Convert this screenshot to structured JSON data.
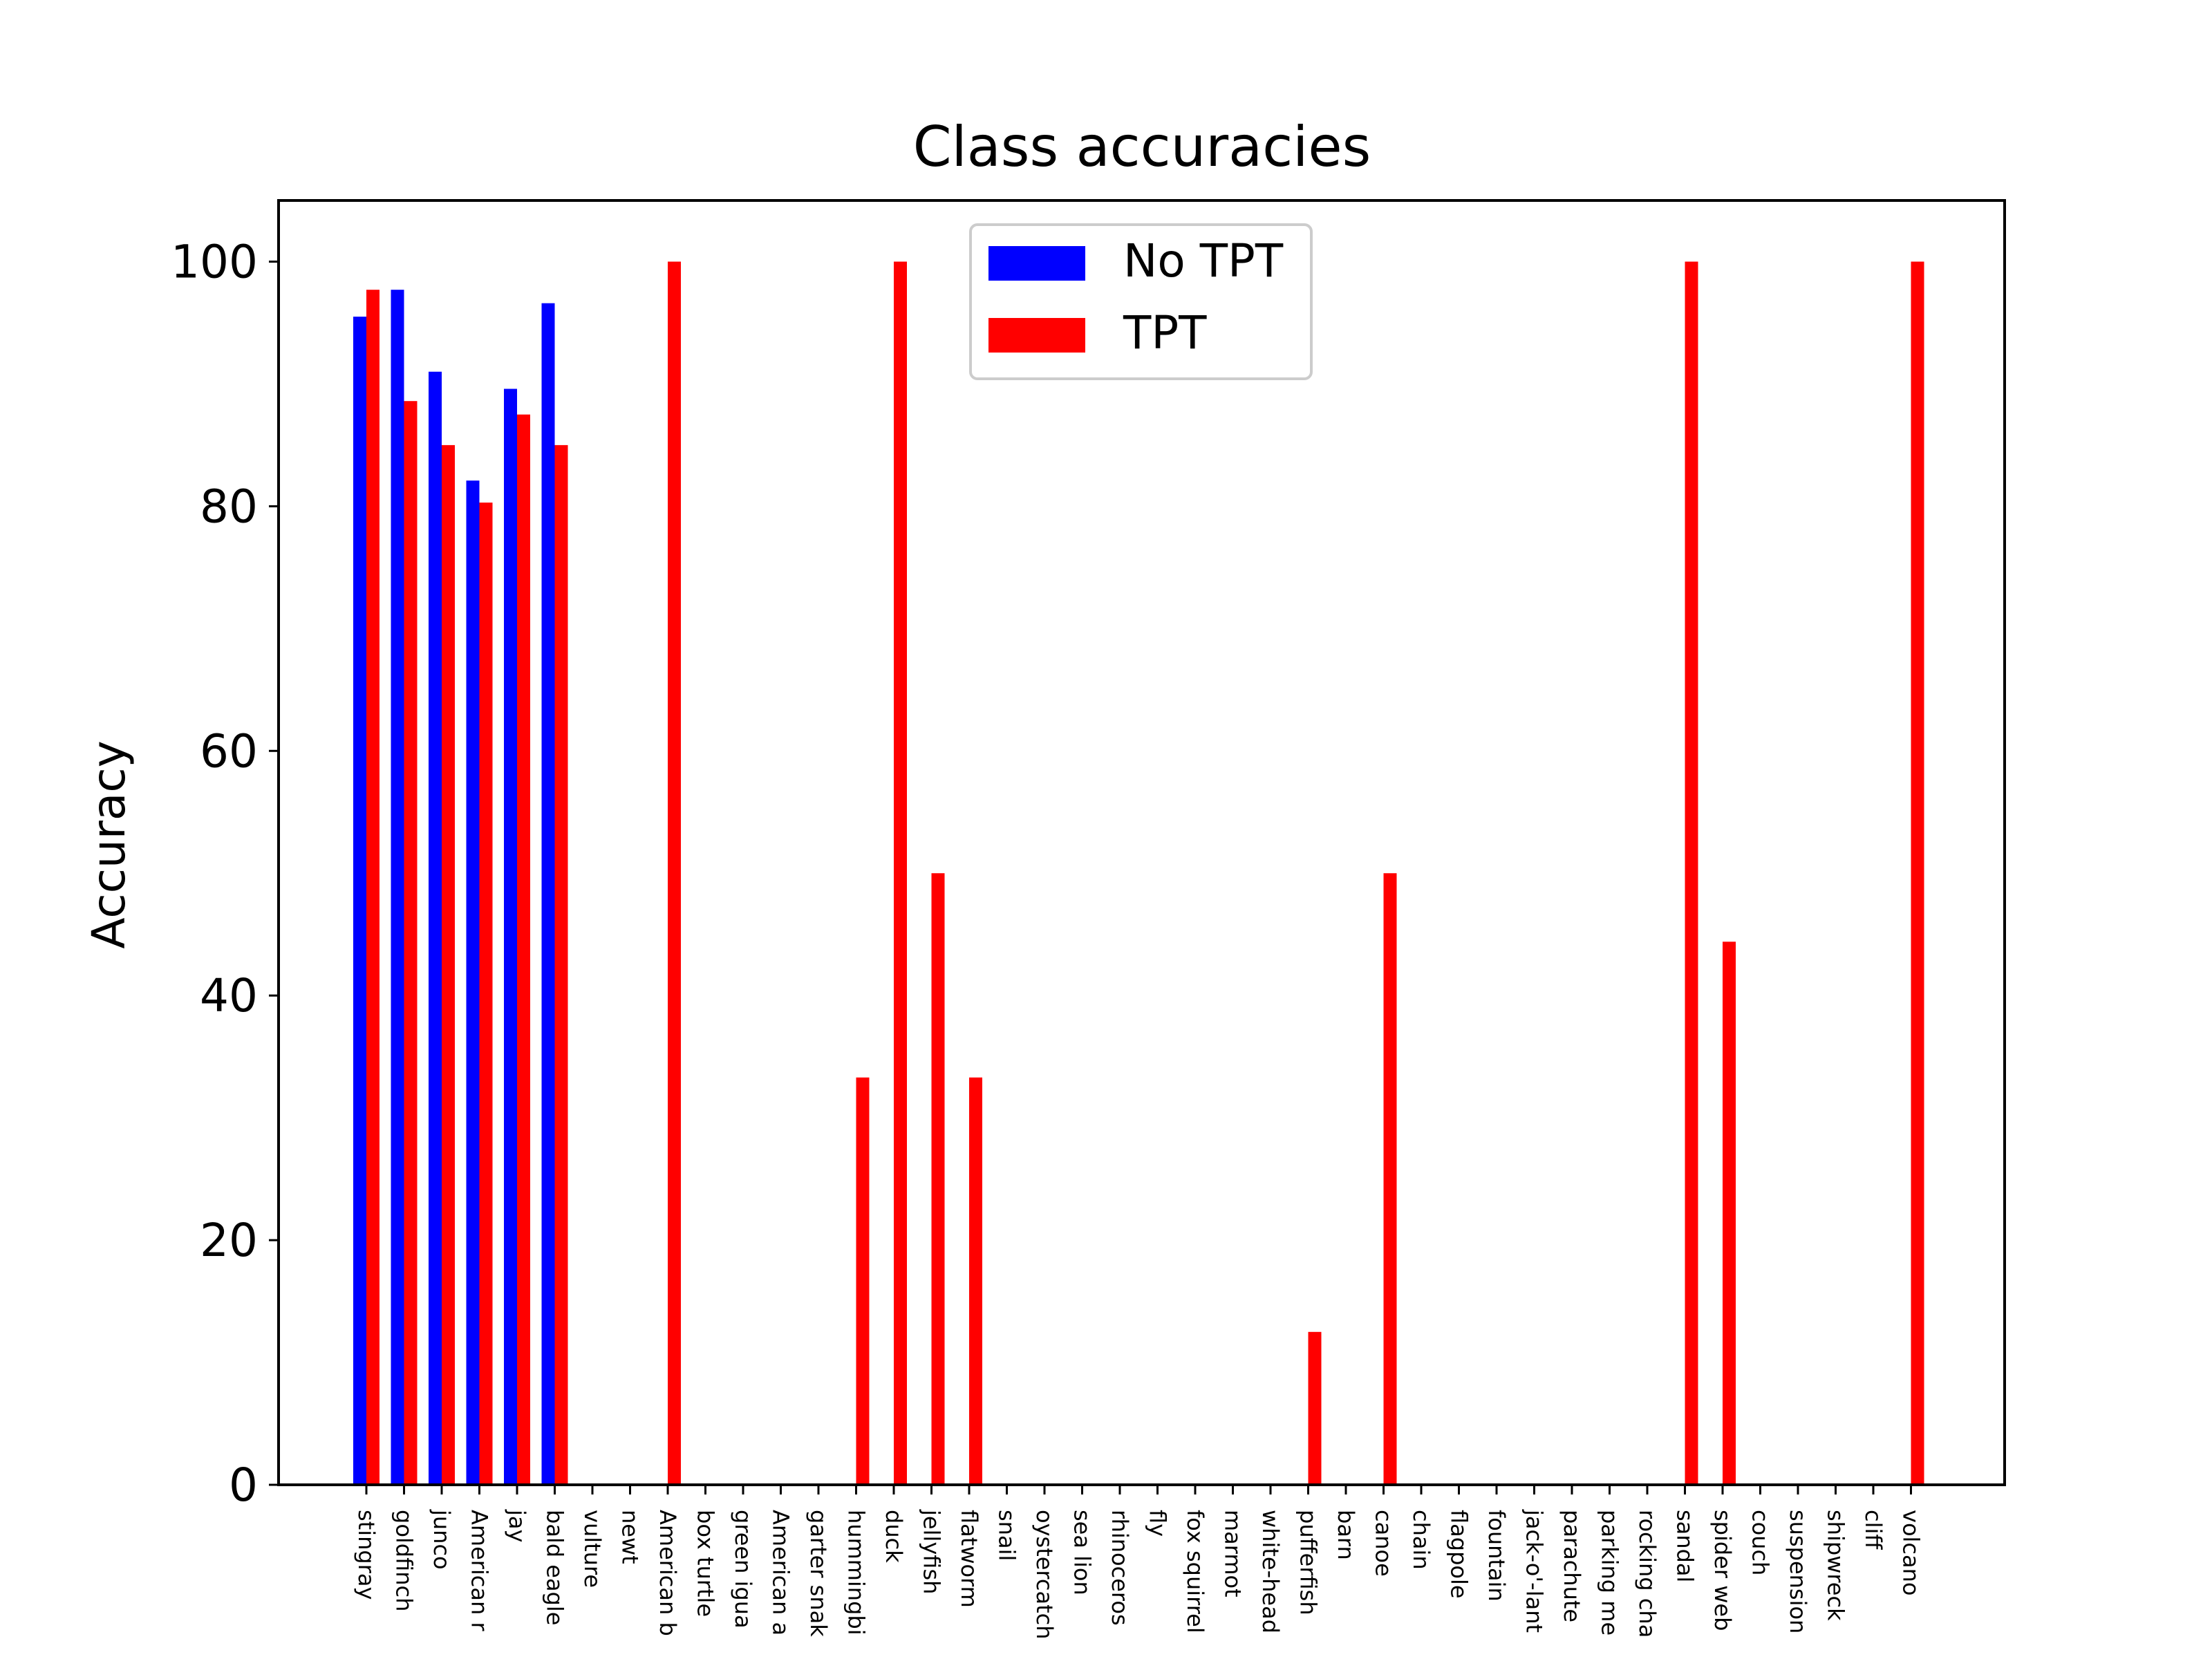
{
  "chart_data": {
    "type": "bar",
    "title": "Class accuracies",
    "xlabel": "",
    "ylabel": "Accuracy",
    "ylim": [
      0,
      105
    ],
    "yticks": [
      0,
      20,
      40,
      60,
      80,
      100
    ],
    "grid": false,
    "legend_position": "top-center",
    "categories": [
      "stingray",
      "goldfinch",
      "junco",
      "American r",
      "jay",
      "bald eagle",
      "vulture",
      "newt",
      "American b",
      "box turtle",
      "green igua",
      "American a",
      "garter snak",
      "hummingbi",
      "duck",
      "jellyfish",
      "flatworm",
      "snail",
      "oystercatch",
      "sea lion",
      "rhinoceros",
      "fly",
      "fox squirrel",
      "marmot",
      "white-head",
      "pufferfish",
      "barn",
      "canoe",
      "chain",
      "flagpole",
      "fountain",
      "jack-o'-lant",
      "parachute",
      "parking me",
      "rocking cha",
      "sandal",
      "spider web",
      "couch",
      "suspension",
      "shipwreck",
      "cliff",
      "volcano"
    ],
    "series": [
      {
        "name": "No TPT",
        "color": "#0000ff",
        "values": [
          95.5,
          97.7,
          91.0,
          82.1,
          89.6,
          96.6,
          0,
          0,
          0,
          0,
          0,
          0,
          0,
          0,
          0,
          0,
          0,
          0,
          0,
          0,
          0,
          0,
          0,
          0,
          0,
          0,
          0,
          0,
          0,
          0,
          0,
          0,
          0,
          0,
          0,
          0,
          0,
          0,
          0,
          0,
          0,
          0
        ]
      },
      {
        "name": "TPT",
        "color": "#ff0000",
        "values": [
          97.7,
          88.6,
          85.0,
          80.3,
          87.5,
          85.0,
          0,
          0,
          100,
          0,
          0,
          0,
          0,
          33.3,
          100,
          50,
          33.3,
          0,
          0,
          0,
          0,
          0,
          0,
          0,
          0,
          12.5,
          0,
          50,
          0,
          0,
          0,
          0,
          0,
          0,
          0,
          100,
          44.4,
          0,
          0,
          0,
          0,
          100
        ]
      }
    ]
  }
}
